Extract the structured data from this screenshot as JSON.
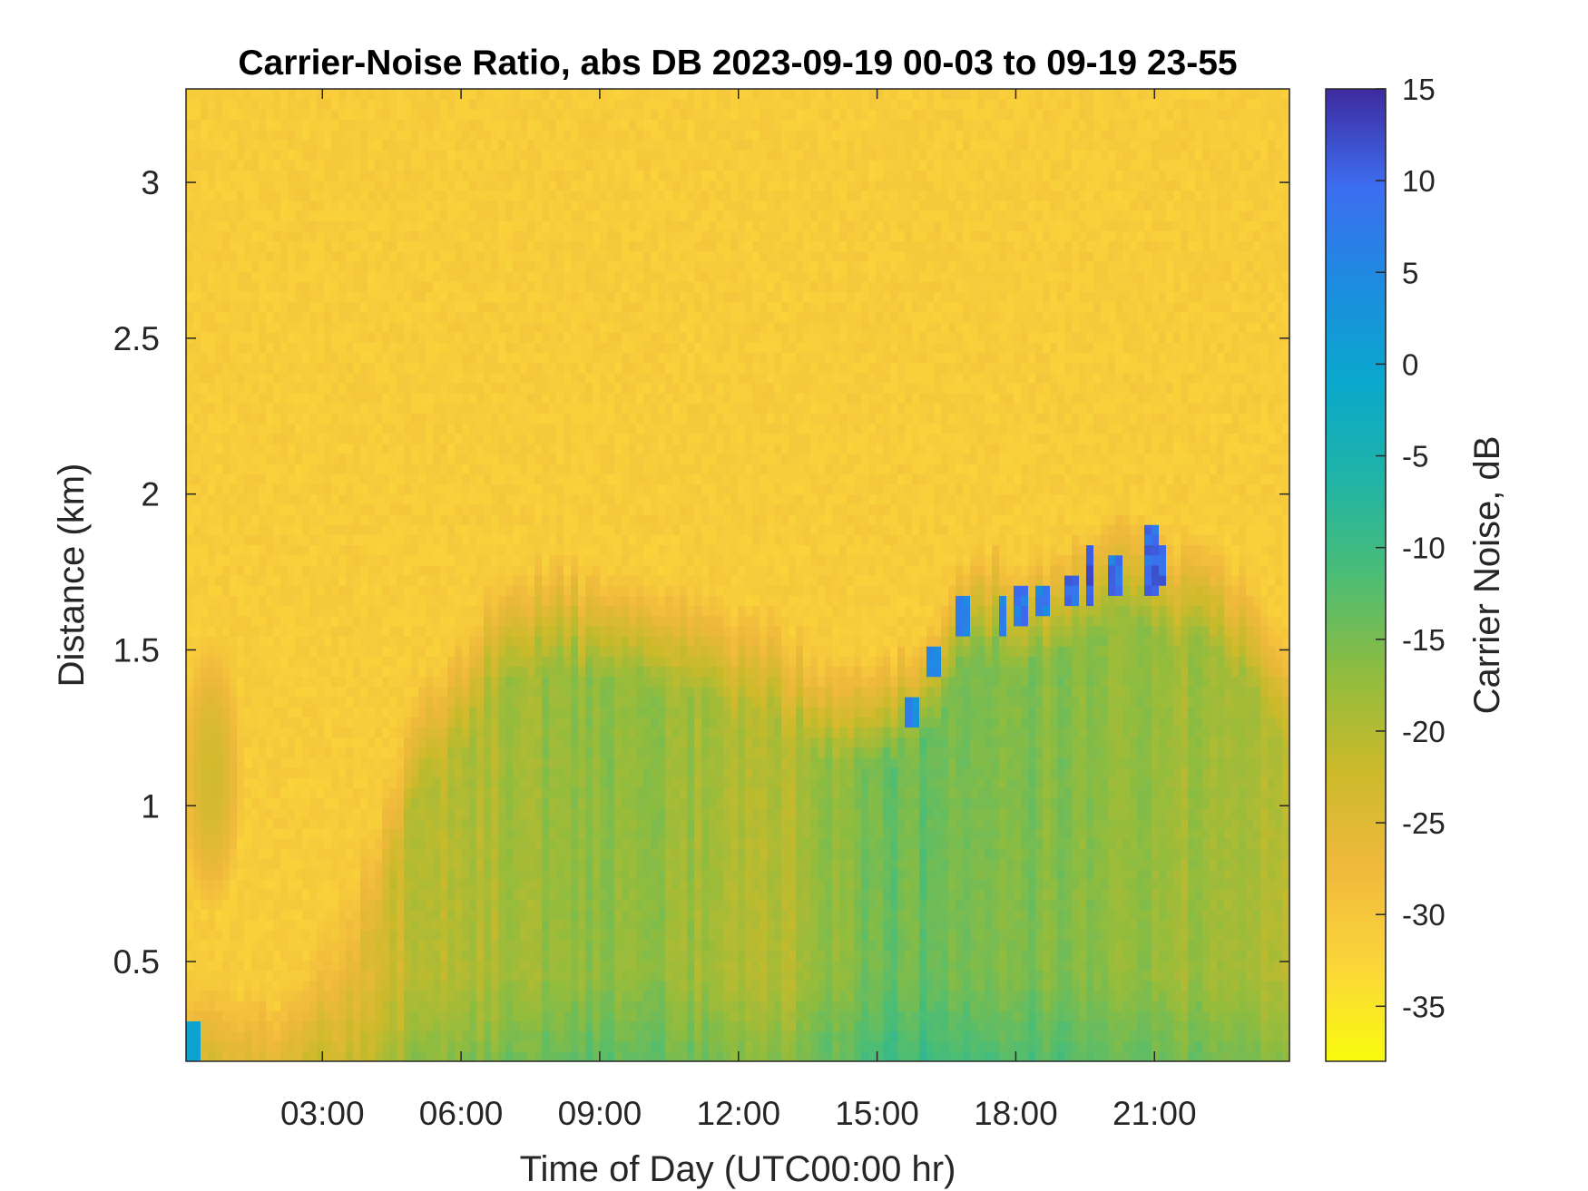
{
  "chart_data": {
    "type": "heatmap",
    "title": "Carrier-Noise Ratio, abs DB 2023-09-19 00-03 to 09-19 23-55",
    "xlabel": "Time of Day (UTC00:00 hr)",
    "ylabel": "Distance (km)",
    "x_range_hours": [
      0.05,
      23.92
    ],
    "y_range_km": [
      0.18,
      3.3
    ],
    "x_ticks": [
      {
        "value": 3,
        "label": "03:00"
      },
      {
        "value": 6,
        "label": "06:00"
      },
      {
        "value": 9,
        "label": "09:00"
      },
      {
        "value": 12,
        "label": "12:00"
      },
      {
        "value": 15,
        "label": "15:00"
      },
      {
        "value": 18,
        "label": "18:00"
      },
      {
        "value": 21,
        "label": "21:00"
      }
    ],
    "y_ticks": [
      {
        "value": 0.5,
        "label": "0.5"
      },
      {
        "value": 1,
        "label": "1"
      },
      {
        "value": 1.5,
        "label": "1.5"
      },
      {
        "value": 2,
        "label": "2"
      },
      {
        "value": 2.5,
        "label": "2.5"
      },
      {
        "value": 3,
        "label": "3"
      }
    ],
    "colorbar": {
      "label": "Carrier Noise, dB",
      "range": [
        -38,
        15
      ],
      "ticks": [
        {
          "value": 15,
          "label": "15"
        },
        {
          "value": 10,
          "label": "10"
        },
        {
          "value": 5,
          "label": "5"
        },
        {
          "value": 0,
          "label": "0"
        },
        {
          "value": -5,
          "label": "-5"
        },
        {
          "value": -10,
          "label": "-10"
        },
        {
          "value": -15,
          "label": "-15"
        },
        {
          "value": -20,
          "label": "-20"
        },
        {
          "value": -25,
          "label": "-25"
        },
        {
          "value": -30,
          "label": "-30"
        },
        {
          "value": -35,
          "label": "-35"
        }
      ],
      "colormap": "parula-reversed"
    },
    "background_level_db": -31,
    "boundary_layer_top_km": [
      {
        "hour": 0.05,
        "km": 0.45
      },
      {
        "hour": 2,
        "km": 0.4
      },
      {
        "hour": 4,
        "km": 0.9
      },
      {
        "hour": 5,
        "km": 1.4
      },
      {
        "hour": 6,
        "km": 1.55
      },
      {
        "hour": 7,
        "km": 1.8
      },
      {
        "hour": 8,
        "km": 1.8
      },
      {
        "hour": 9,
        "km": 1.75
      },
      {
        "hour": 10,
        "km": 1.75
      },
      {
        "hour": 11,
        "km": 1.7
      },
      {
        "hour": 12,
        "km": 1.65
      },
      {
        "hour": 13,
        "km": 1.6
      },
      {
        "hour": 14,
        "km": 1.45
      },
      {
        "hour": 15,
        "km": 1.45
      },
      {
        "hour": 16,
        "km": 1.55
      },
      {
        "hour": 17,
        "km": 1.85
      },
      {
        "hour": 18,
        "km": 1.8
      },
      {
        "hour": 19,
        "km": 1.85
      },
      {
        "hour": 20,
        "km": 1.95
      },
      {
        "hour": 21,
        "km": 1.9
      },
      {
        "hour": 22,
        "km": 1.85
      },
      {
        "hour": 23,
        "km": 1.75
      },
      {
        "hour": 23.92,
        "km": 1.6
      }
    ],
    "boundary_layer_min_db": [
      {
        "hour": 0.05,
        "db": -27
      },
      {
        "hour": 2,
        "db": -28
      },
      {
        "hour": 4,
        "db": -25
      },
      {
        "hour": 5,
        "db": -21
      },
      {
        "hour": 6,
        "db": -20
      },
      {
        "hour": 7,
        "db": -19
      },
      {
        "hour": 8,
        "db": -17
      },
      {
        "hour": 9,
        "db": -17
      },
      {
        "hour": 10,
        "db": -16.5
      },
      {
        "hour": 11,
        "db": -18
      },
      {
        "hour": 12,
        "db": -19.5
      },
      {
        "hour": 13,
        "db": -20
      },
      {
        "hour": 14,
        "db": -17
      },
      {
        "hour": 15,
        "db": -14
      },
      {
        "hour": 16,
        "db": -14
      },
      {
        "hour": 17,
        "db": -15
      },
      {
        "hour": 18,
        "db": -15.5
      },
      {
        "hour": 19,
        "db": -16
      },
      {
        "hour": 20,
        "db": -17
      },
      {
        "hour": 21,
        "db": -17
      },
      {
        "hour": 22,
        "db": -18.5
      },
      {
        "hour": 23,
        "db": -19
      },
      {
        "hour": 23.92,
        "db": -20
      }
    ],
    "early_plume": {
      "hour": 0.6,
      "km_low": 0.65,
      "km_high": 1.55,
      "db": -23
    },
    "cloud_returns": [
      {
        "hour": 15.8,
        "km_low": 1.25,
        "km_high": 1.35,
        "db": 8
      },
      {
        "hour": 16.2,
        "km_low": 1.4,
        "km_high": 1.5,
        "db": 6
      },
      {
        "hour": 16.9,
        "km_low": 1.55,
        "km_high": 1.68,
        "db": 8
      },
      {
        "hour": 17.7,
        "km_low": 1.55,
        "km_high": 1.68,
        "db": 10
      },
      {
        "hour": 18.1,
        "km_low": 1.57,
        "km_high": 1.7,
        "db": 11
      },
      {
        "hour": 18.6,
        "km_low": 1.6,
        "km_high": 1.72,
        "db": 10
      },
      {
        "hour": 19.2,
        "km_low": 1.63,
        "km_high": 1.75,
        "db": 12
      },
      {
        "hour": 19.6,
        "km_low": 1.65,
        "km_high": 1.85,
        "db": 13
      },
      {
        "hour": 20.1,
        "km_low": 1.68,
        "km_high": 1.8,
        "db": 11
      },
      {
        "hour": 20.9,
        "km_low": 1.68,
        "km_high": 1.9,
        "db": 13
      },
      {
        "hour": 21.1,
        "km_low": 1.7,
        "km_high": 1.85,
        "db": 12
      }
    ],
    "near_ground_strong_return": {
      "hour": 0.2,
      "km_low": 0.18,
      "km_high": 0.32,
      "db": 0
    }
  }
}
